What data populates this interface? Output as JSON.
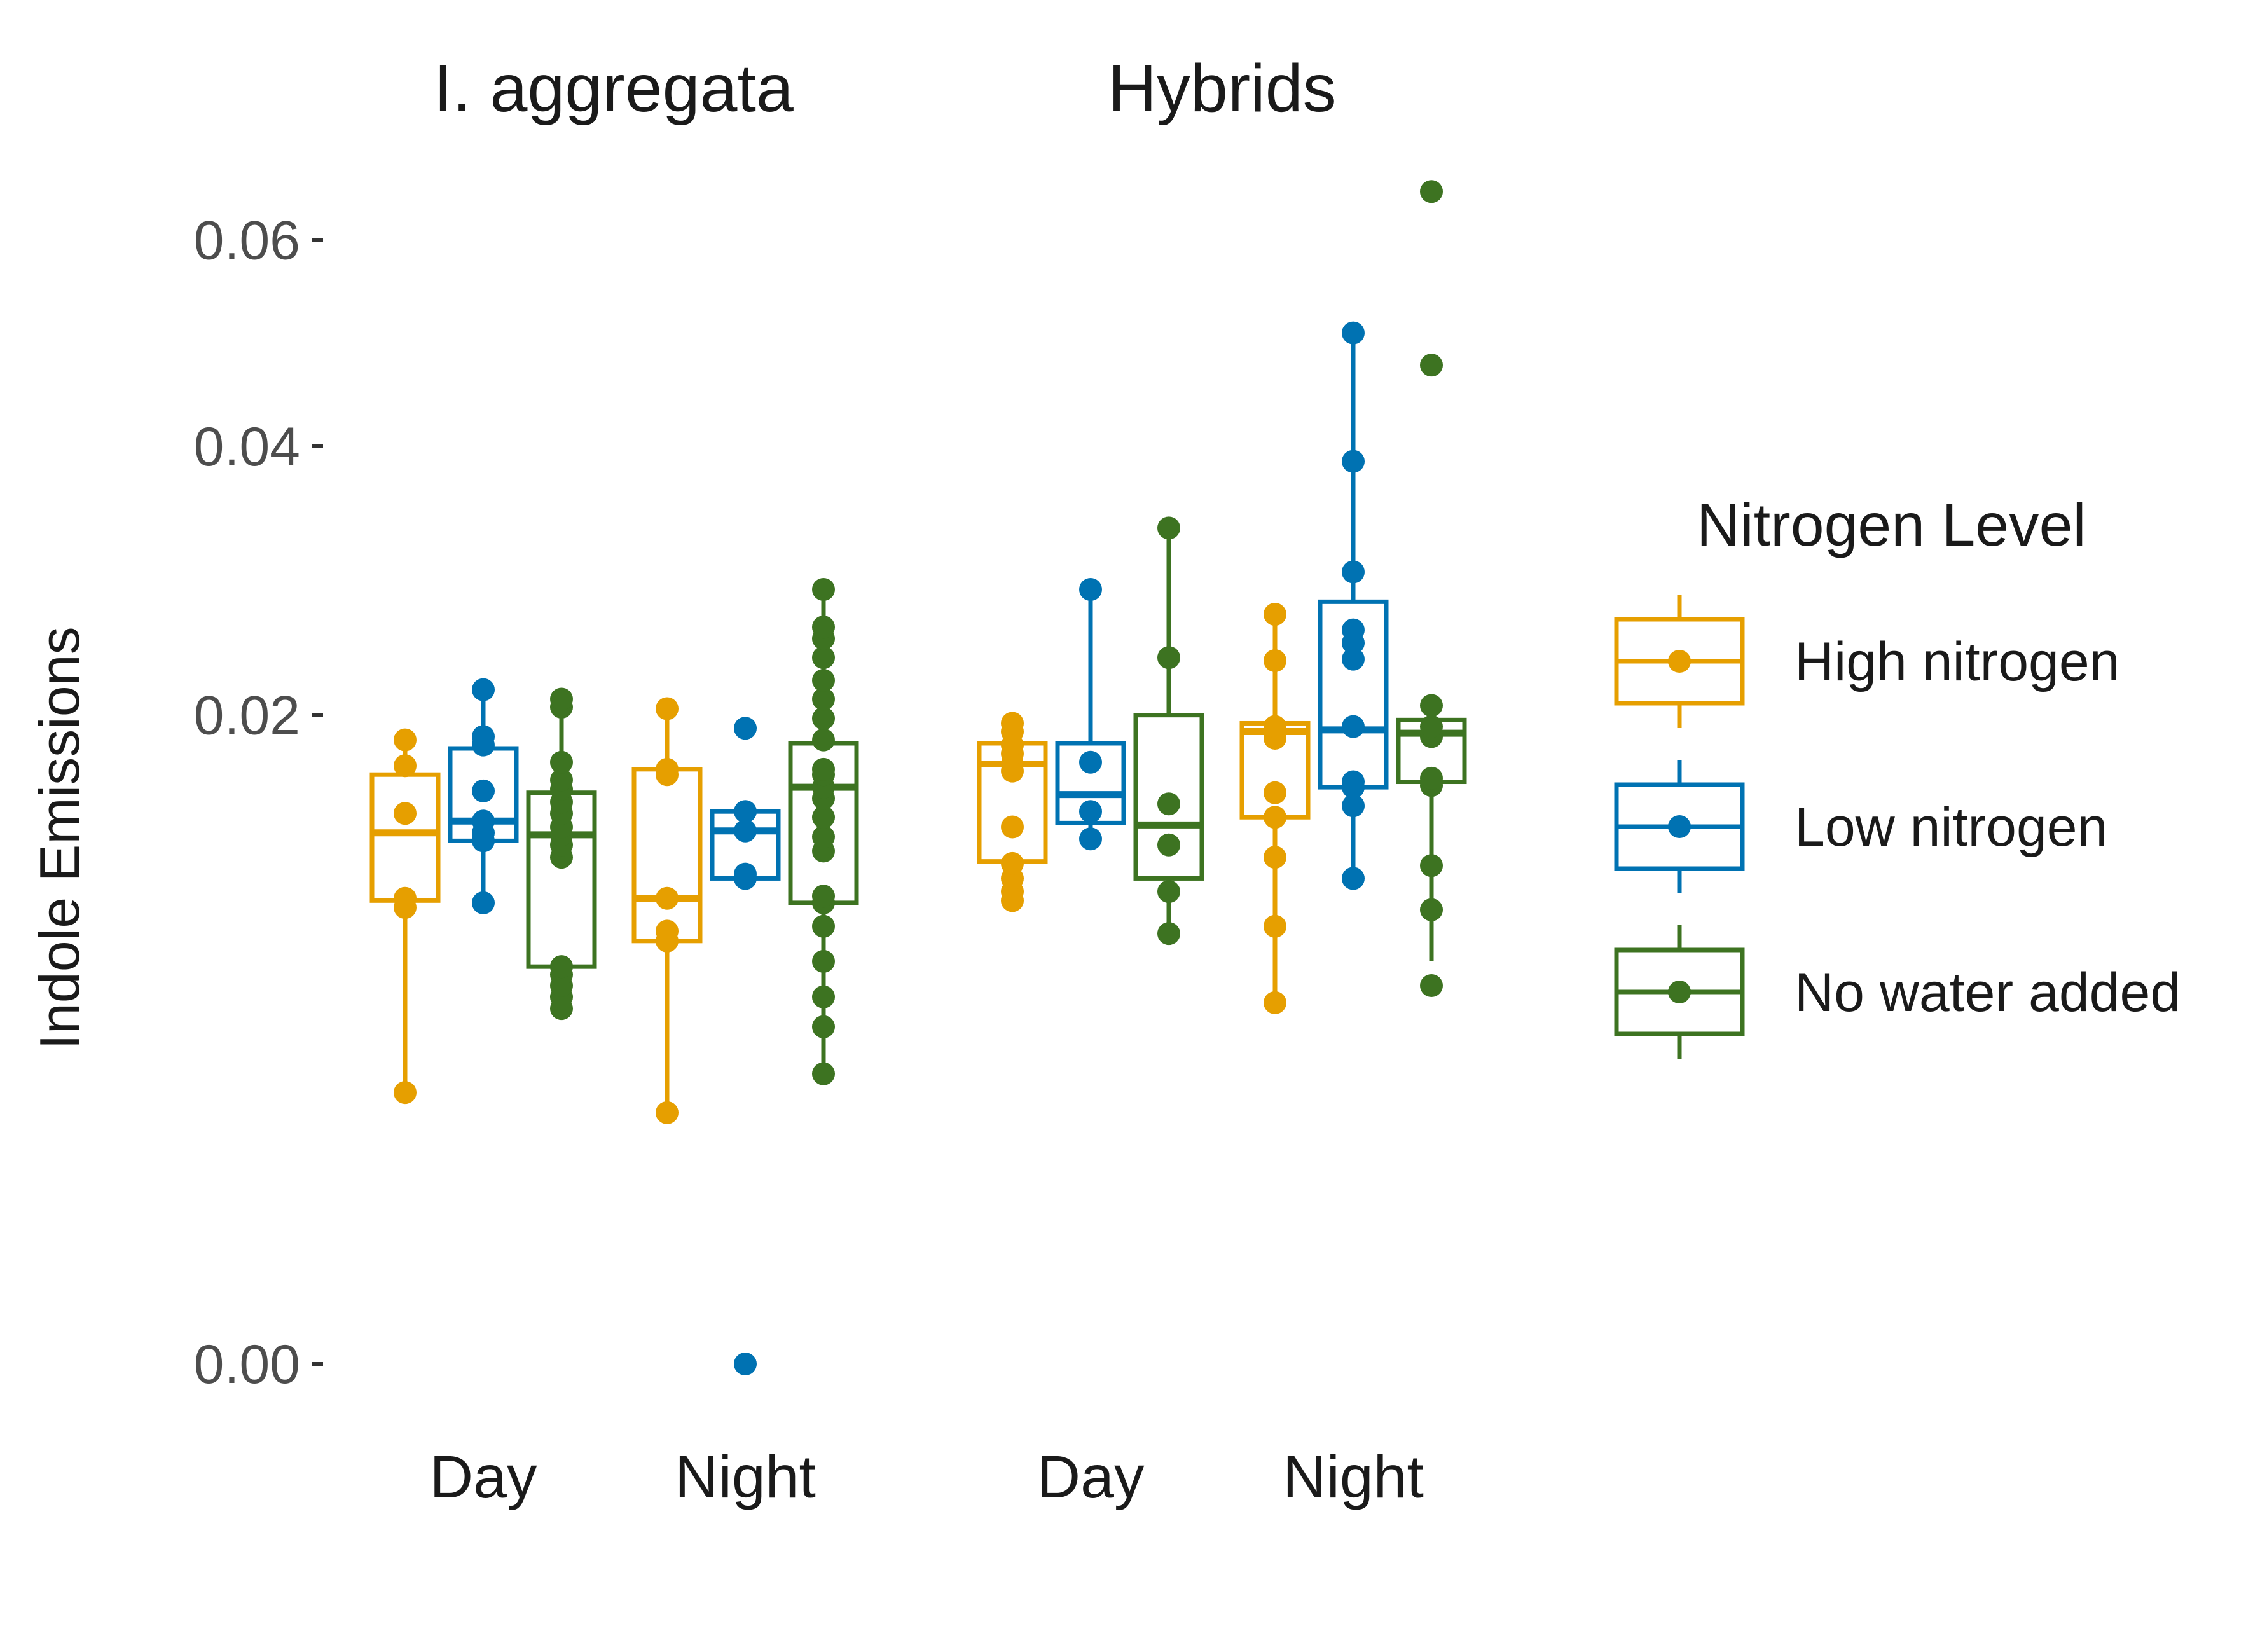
{
  "chart_data": {
    "type": "boxplot",
    "title": "",
    "ylabel": "Indole Emissions",
    "xlabel": "",
    "ylim": [
      0,
      0.066
    ],
    "y_transform": "sqrt",
    "y_ticks": [
      {
        "value": 0.0,
        "label": "0.00"
      },
      {
        "value": 0.02,
        "label": "0.02"
      },
      {
        "value": 0.04,
        "label": "0.04"
      },
      {
        "value": 0.06,
        "label": "0.06"
      }
    ],
    "facets": [
      {
        "title": "I. aggregata",
        "categories": [
          "Day",
          "Night"
        ]
      },
      {
        "title": "Hybrids",
        "categories": [
          "Day",
          "Night"
        ]
      }
    ],
    "legend": {
      "title": "Nitrogen Level",
      "position": "right",
      "items": [
        {
          "label": "High nitrogen",
          "color": "#E69F00"
        },
        {
          "label": "Low nitrogen",
          "color": "#0072B2"
        },
        {
          "label": "No water added",
          "color": "#3D7321"
        }
      ]
    },
    "series": [
      {
        "name": "High nitrogen",
        "color": "#E69F00",
        "groups": [
          {
            "facet": 0,
            "category": "Day",
            "box": {
              "whisker_low": 0.0035,
              "q1": 0.0102,
              "median": 0.0134,
              "q3": 0.0165,
              "whisker_high": 0.0185
            },
            "points": [
              0.0035,
              0.0099,
              0.0103,
              0.0144,
              0.017,
              0.0185
            ]
          },
          {
            "facet": 0,
            "category": "Night",
            "box": {
              "whisker_low": 0.003,
              "q1": 0.0085,
              "median": 0.0103,
              "q3": 0.0168,
              "whisker_high": 0.0204
            },
            "points": [
              0.003,
              0.0085,
              0.0089,
              0.0103,
              0.0165,
              0.0168,
              0.0204
            ]
          },
          {
            "facet": 1,
            "category": "Day",
            "box": {
              "whisker_low": 0.0102,
              "q1": 0.012,
              "median": 0.0171,
              "q3": 0.0183,
              "whisker_high": 0.0195
            },
            "points": [
              0.0102,
              0.0106,
              0.0112,
              0.0119,
              0.0137,
              0.0167,
              0.0171,
              0.0177,
              0.0182,
              0.019,
              0.0195
            ]
          },
          {
            "facet": 1,
            "category": "Night",
            "box": {
              "whisker_low": 0.0062,
              "q1": 0.0142,
              "median": 0.019,
              "q3": 0.0195,
              "whisker_high": 0.0267
            },
            "points": [
              0.0062,
              0.0091,
              0.0122,
              0.0142,
              0.0155,
              0.0186,
              0.019,
              0.0193,
              0.0235,
              0.0267
            ]
          }
        ]
      },
      {
        "name": "Low nitrogen",
        "color": "#0072B2",
        "groups": [
          {
            "facet": 0,
            "category": "Day",
            "box": {
              "whisker_low": 0.0101,
              "q1": 0.013,
              "median": 0.014,
              "q3": 0.018,
              "whisker_high": 0.0216
            },
            "points": [
              0.0101,
              0.013,
              0.0134,
              0.014,
              0.0156,
              0.0182,
              0.0187,
              0.0216
            ]
          },
          {
            "facet": 0,
            "category": "Night",
            "box": {
              "whisker_low": 0.0112,
              "q1": 0.0112,
              "median": 0.0135,
              "q3": 0.0145,
              "whisker_high": 0.0145
            },
            "points": [
              0.0,
              0.0112,
              0.0114,
              0.0135,
              0.0145,
              0.0192
            ]
          },
          {
            "facet": 1,
            "category": "Day",
            "box": {
              "whisker_low": 0.0131,
              "q1": 0.0139,
              "median": 0.0154,
              "q3": 0.0183,
              "whisker_high": 0.0285
            },
            "points": [
              0.0131,
              0.0145,
              0.0172,
              0.0285
            ]
          },
          {
            "facet": 1,
            "category": "Night",
            "box": {
              "whisker_low": 0.0112,
              "q1": 0.0158,
              "median": 0.0191,
              "q3": 0.0276,
              "whisker_high": 0.0505
            },
            "points": [
              0.0112,
              0.0148,
              0.0158,
              0.0161,
              0.0193,
              0.0236,
              0.0247,
              0.0256,
              0.0298,
              0.0387,
              0.0505
            ]
          }
        ]
      },
      {
        "name": "No water added",
        "color": "#3D7321",
        "groups": [
          {
            "facet": 0,
            "category": "Day",
            "box": {
              "whisker_low": 0.006,
              "q1": 0.0075,
              "median": 0.0133,
              "q3": 0.0155,
              "whisker_high": 0.021
            },
            "points": [
              0.006,
              0.0064,
              0.0068,
              0.0072,
              0.0075,
              0.0122,
              0.0128,
              0.0133,
              0.0137,
              0.0144,
              0.015,
              0.0157,
              0.0162,
              0.0172,
              0.0205,
              0.021
            ]
          },
          {
            "facet": 0,
            "category": "Night",
            "box": {
              "whisker_low": 0.004,
              "q1": 0.0101,
              "median": 0.0158,
              "q3": 0.0183,
              "whisker_high": 0.0285
            },
            "points": [
              0.004,
              0.0054,
              0.0064,
              0.0077,
              0.0091,
              0.0101,
              0.0104,
              0.0125,
              0.0132,
              0.0142,
              0.0152,
              0.0158,
              0.0165,
              0.0168,
              0.0185,
              0.0198,
              0.021,
              0.0222,
              0.0237,
              0.025,
              0.0258,
              0.0285
            ]
          },
          {
            "facet": 1,
            "category": "Day",
            "box": {
              "whisker_low": 0.0088,
              "q1": 0.0112,
              "median": 0.0138,
              "q3": 0.02,
              "whisker_high": 0.0332
            },
            "points": [
              0.0088,
              0.0106,
              0.0128,
              0.0149,
              0.0237,
              0.0332
            ]
          },
          {
            "facet": 1,
            "category": "Night",
            "box": {
              "whisker_low": 0.0077,
              "q1": 0.0161,
              "median": 0.0189,
              "q3": 0.0197,
              "whisker_high": 0.0206
            },
            "points": [
              0.0068,
              0.0098,
              0.0118,
              0.0159,
              0.0163,
              0.0187,
              0.0193,
              0.0206,
              0.0474,
              0.0653
            ]
          }
        ]
      }
    ]
  }
}
